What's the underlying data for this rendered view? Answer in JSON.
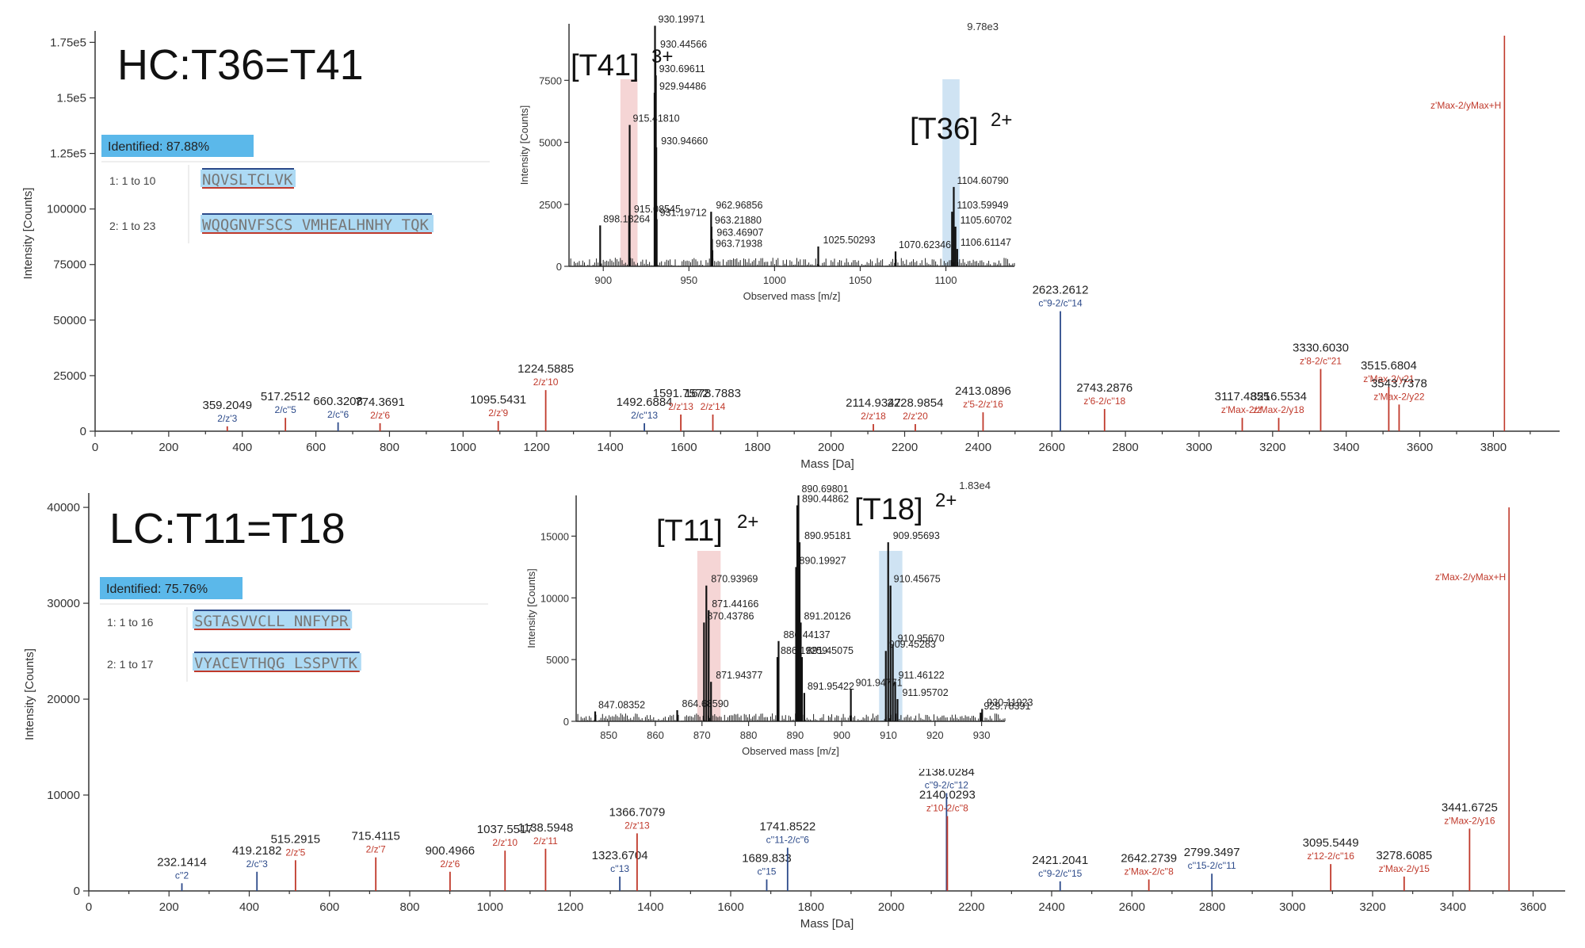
{
  "chart_data": [
    {
      "type": "bar",
      "panel": "top",
      "title": "HC:T36=T41",
      "xlabel": "Mass [Da]",
      "ylabel": "Intensity [Counts]",
      "xlim": [
        0,
        3980
      ],
      "ylim": [
        0,
        178000
      ],
      "xticks": [
        0,
        200,
        400,
        600,
        800,
        1000,
        1200,
        1400,
        1600,
        1800,
        2000,
        2200,
        2400,
        2600,
        2800,
        3000,
        3200,
        3400,
        3600,
        3800
      ],
      "yticks": [
        {
          "v": 0,
          "l": "0"
        },
        {
          "v": 25000,
          "l": "25000"
        },
        {
          "v": 50000,
          "l": "50000"
        },
        {
          "v": 75000,
          "l": "75000"
        },
        {
          "v": 100000,
          "l": "100000"
        },
        {
          "v": 125000,
          "l": "1.25e5"
        },
        {
          "v": 150000,
          "l": "1.5e5"
        },
        {
          "v": 175000,
          "l": "1.75e5"
        }
      ],
      "identified": "Identified: 87.88%",
      "sequences": [
        {
          "label": "1: 1 to 10",
          "seq": "NQVSLTCLVK",
          "cys": [
            6
          ]
        },
        {
          "label": "2: 1 to 23",
          "seq": "WQQGNVFSCS VMHEALHNHY TQK",
          "cys": [
            8
          ]
        }
      ],
      "peaks": [
        {
          "m": 359.2049,
          "i": 2200,
          "c": "#c0392b",
          "lab": "359.2049",
          "ion": "2/z'3",
          "ic": "#2c4a8a"
        },
        {
          "m": 517.2512,
          "i": 6000,
          "c": "#c0392b",
          "lab": "517.2512",
          "ion": "2/c''5",
          "ic": "#2c4a8a"
        },
        {
          "m": 660.3208,
          "i": 4000,
          "c": "#2c4a8a",
          "lab": "660.3208",
          "ion": "2/c''6",
          "ic": "#2c4a8a"
        },
        {
          "m": 774.3691,
          "i": 3600,
          "c": "#c0392b",
          "lab": "774.3691",
          "ion": "2/z'6",
          "ic": "#c0392b"
        },
        {
          "m": 1095.5431,
          "i": 4600,
          "c": "#c0392b",
          "lab": "1095.5431",
          "ion": "2/z'9",
          "ic": "#c0392b"
        },
        {
          "m": 1224.5885,
          "i": 18500,
          "c": "#c0392b",
          "lab": "1224.5885",
          "ion": "2/z'10",
          "ic": "#c0392b"
        },
        {
          "m": 1492.6884,
          "i": 3600,
          "c": "#2c4a8a",
          "lab": "1492.6884",
          "ion": "2/c''13",
          "ic": "#2c4a8a"
        },
        {
          "m": 1591.7572,
          "i": 7500,
          "c": "#c0392b",
          "lab": "1591.7572",
          "ion": "2/z'13",
          "ic": "#c0392b"
        },
        {
          "m": 1678.7883,
          "i": 7500,
          "c": "#c0392b",
          "lab": "1678.7883",
          "ion": "2/z'14",
          "ic": "#c0392b"
        },
        {
          "m": 2114.9347,
          "i": 3200,
          "c": "#c0392b",
          "lab": "2114.9347",
          "ion": "2/z'18",
          "ic": "#c0392b"
        },
        {
          "m": 2228.9854,
          "i": 3200,
          "c": "#c0392b",
          "lab": "2228.9854",
          "ion": "2/z'20",
          "ic": "#c0392b"
        },
        {
          "m": 2413.0896,
          "i": 8500,
          "c": "#c0392b",
          "lab": "2413.0896",
          "ion": "z'5-2/z'16",
          "ic": "#c0392b"
        },
        {
          "m": 2623.2612,
          "i": 54000,
          "c": "#2c4a8a",
          "lab": "2623.2612",
          "ion": "c''9-2/c''14",
          "ic": "#2c4a8a"
        },
        {
          "m": 2743.2876,
          "i": 10000,
          "c": "#c0392b",
          "lab": "2743.2876",
          "ion": "z'6-2/c''18",
          "ic": "#c0392b"
        },
        {
          "m": 3117.4855,
          "i": 6000,
          "c": "#c0392b",
          "lab": "3117.4855",
          "ion": "z'Max-2/z'",
          "ic": "#c0392b"
        },
        {
          "m": 3216.5534,
          "i": 6000,
          "c": "#c0392b",
          "lab": "3216.5534",
          "ion": "z'Max-2/y18",
          "ic": "#c0392b"
        },
        {
          "m": 3330.603,
          "i": 28000,
          "c": "#c0392b",
          "lab": "3330.6030",
          "ion": "z'8-2/c''21",
          "ic": "#c0392b"
        },
        {
          "m": 3515.6804,
          "i": 20000,
          "c": "#c0392b",
          "lab": "3515.6804",
          "ion": "z'Max-2/y21",
          "ic": "#c0392b"
        },
        {
          "m": 3543.7378,
          "i": 12000,
          "c": "#c0392b",
          "lab": "3543.7378",
          "ion": "z'Max-2/y22",
          "ic": "#c0392b"
        },
        {
          "m": 3830.0,
          "i": 178000,
          "c": "#c0392b",
          "lab": "",
          "ion": "z'Max-2/yMax+H",
          "ic": "#c0392b"
        }
      ],
      "inset": {
        "xlabel": "Observed mass [m/z]",
        "ylabel": "Intensity [Counts]",
        "xlim": [
          880,
          1140
        ],
        "ylim": [
          0,
          9780
        ],
        "maxlabel": "9.78e3",
        "xticks": [
          900,
          950,
          1000,
          1050,
          1100
        ],
        "yticks": [
          0,
          2500,
          5000,
          7500
        ],
        "bands": [
          {
            "from": 910,
            "to": 920,
            "color": "#f5d5d5"
          },
          {
            "from": 1098,
            "to": 1108,
            "color": "#cfe3f3"
          }
        ],
        "species": [
          {
            "label": "[T41]",
            "sup": "3+"
          },
          {
            "label": "[T36]",
            "sup": "2+"
          }
        ],
        "peaks": [
          {
            "m": 898.18264,
            "i": 1650,
            "lab": "898.18264"
          },
          {
            "m": 915.08545,
            "i": 2050,
            "lab": "915.08545"
          },
          {
            "m": 915.4181,
            "i": 5700,
            "lab": "915.41810"
          },
          {
            "m": 929.94486,
            "i": 7000,
            "lab": "929.94486"
          },
          {
            "m": 930.19971,
            "i": 9700,
            "lab": "930.19971"
          },
          {
            "m": 930.44566,
            "i": 8700,
            "lab": "930.44566"
          },
          {
            "m": 930.69611,
            "i": 7700,
            "lab": "930.69611"
          },
          {
            "m": 930.9466,
            "i": 4800,
            "lab": "930.94660"
          },
          {
            "m": 931.19712,
            "i": 1900,
            "lab": "931.19712"
          },
          {
            "m": 962.96856,
            "i": 2200,
            "lab": "962.96856"
          },
          {
            "m": 963.2188,
            "i": 1600,
            "lab": "963.21880"
          },
          {
            "m": 963.46907,
            "i": 1100,
            "lab": "963.46907"
          },
          {
            "m": 963.71938,
            "i": 650,
            "lab": "963.71938"
          },
          {
            "m": 1025.50293,
            "i": 800,
            "lab": "1025.50293"
          },
          {
            "m": 1070.62346,
            "i": 600,
            "lab": "1070.62346"
          },
          {
            "m": 1103.59949,
            "i": 2200,
            "lab": "1103.59949"
          },
          {
            "m": 1104.6079,
            "i": 3200,
            "lab": "1104.60790"
          },
          {
            "m": 1105.60702,
            "i": 1600,
            "lab": "1105.60702"
          },
          {
            "m": 1106.61147,
            "i": 700,
            "lab": "1106.61147"
          }
        ]
      }
    },
    {
      "type": "bar",
      "panel": "bottom",
      "title": "LC:T11=T18",
      "xlabel": "Mass [Da]",
      "ylabel": "Intensity [Counts]",
      "xlim": [
        0,
        3680
      ],
      "ylim": [
        0,
        41000
      ],
      "xticks": [
        0,
        200,
        400,
        600,
        800,
        1000,
        1200,
        1400,
        1600,
        1800,
        2000,
        2200,
        2400,
        2600,
        2800,
        3000,
        3200,
        3400,
        3600
      ],
      "yticks": [
        {
          "v": 0,
          "l": "0"
        },
        {
          "v": 10000,
          "l": "10000"
        },
        {
          "v": 20000,
          "l": "20000"
        },
        {
          "v": 30000,
          "l": "30000"
        },
        {
          "v": 40000,
          "l": "40000"
        }
      ],
      "identified": "Identified: 75.76%",
      "sequences": [
        {
          "label": "1: 1 to 16",
          "seq": "SGTASVVCLL NNFYPR",
          "cys": [
            7
          ]
        },
        {
          "label": "2: 1 to 17",
          "seq": "VYACEVTHQG LSSPVTK",
          "cys": [
            3
          ]
        }
      ],
      "peaks": [
        {
          "m": 232.1414,
          "i": 800,
          "c": "#2c4a8a",
          "lab": "232.1414",
          "ion": "c''2",
          "ic": "#2c4a8a"
        },
        {
          "m": 419.2182,
          "i": 2000,
          "c": "#2c4a8a",
          "lab": "419.2182",
          "ion": "2/c''3",
          "ic": "#2c4a8a"
        },
        {
          "m": 515.2915,
          "i": 3200,
          "c": "#c0392b",
          "lab": "515.2915",
          "ion": "2/z'5",
          "ic": "#c0392b"
        },
        {
          "m": 715.4115,
          "i": 3500,
          "c": "#c0392b",
          "lab": "715.4115",
          "ion": "2/z'7",
          "ic": "#c0392b"
        },
        {
          "m": 900.4966,
          "i": 2000,
          "c": "#c0392b",
          "lab": "900.4966",
          "ion": "2/z'6",
          "ic": "#c0392b"
        },
        {
          "m": 1037.5517,
          "i": 4200,
          "c": "#c0392b",
          "lab": "1037.5517",
          "ion": "2/z'10",
          "ic": "#c0392b"
        },
        {
          "m": 1138.5948,
          "i": 4400,
          "c": "#c0392b",
          "lab": "1138.5948",
          "ion": "2/z'11",
          "ic": "#c0392b"
        },
        {
          "m": 1323.6704,
          "i": 1500,
          "c": "#2c4a8a",
          "lab": "1323.6704",
          "ion": "c''13",
          "ic": "#2c4a8a"
        },
        {
          "m": 1366.7079,
          "i": 6000,
          "c": "#c0392b",
          "lab": "1366.7079",
          "ion": "2/z'13",
          "ic": "#c0392b"
        },
        {
          "m": 1689.833,
          "i": 1200,
          "c": "#2c4a8a",
          "lab": "1689.833",
          "ion": "c''15",
          "ic": "#2c4a8a"
        },
        {
          "m": 1741.8522,
          "i": 4500,
          "c": "#2c4a8a",
          "lab": "1741.8522",
          "ion": "c''11-2/c''6",
          "ic": "#2c4a8a"
        },
        {
          "m": 2138.0284,
          "i": 10200,
          "c": "#2c4a8a",
          "lab": "2138.0284",
          "ion": "c''9-2/c''12",
          "ic": "#2c4a8a"
        },
        {
          "m": 2140.0293,
          "i": 7800,
          "c": "#c0392b",
          "lab": "2140.0293",
          "ion": "z'10-2/c''8",
          "ic": "#c0392b"
        },
        {
          "m": 2421.2041,
          "i": 1000,
          "c": "#2c4a8a",
          "lab": "2421.2041",
          "ion": "c''9-2/c''15",
          "ic": "#2c4a8a"
        },
        {
          "m": 2642.2739,
          "i": 1200,
          "c": "#c0392b",
          "lab": "2642.2739",
          "ion": "z'Max-2/c''8",
          "ic": "#c0392b"
        },
        {
          "m": 2799.3497,
          "i": 1800,
          "c": "#2c4a8a",
          "lab": "2799.3497",
          "ion": "c''15-2/c''11",
          "ic": "#2c4a8a"
        },
        {
          "m": 3095.5449,
          "i": 2800,
          "c": "#c0392b",
          "lab": "3095.5449",
          "ion": "z'12-2/c''16",
          "ic": "#c0392b"
        },
        {
          "m": 3278.6085,
          "i": 1500,
          "c": "#c0392b",
          "lab": "3278.6085",
          "ion": "z'Max-2/y15",
          "ic": "#c0392b"
        },
        {
          "m": 3441.6725,
          "i": 6500,
          "c": "#c0392b",
          "lab": "3441.6725",
          "ion": "z'Max-2/y16",
          "ic": "#c0392b"
        },
        {
          "m": 3540.0,
          "i": 40000,
          "c": "#c0392b",
          "lab": "",
          "ion": "z'Max-2/yMax+H",
          "ic": "#c0392b"
        }
      ],
      "inset": {
        "xlabel": "Observed mass [m/z]",
        "ylabel": "Intensity [Counts]",
        "xlim": [
          843,
          935
        ],
        "ylim": [
          0,
          18300
        ],
        "maxlabel": "1.83e4",
        "xticks": [
          850,
          860,
          870,
          880,
          890,
          900,
          910,
          920,
          930
        ],
        "yticks": [
          0,
          5000,
          10000,
          15000
        ],
        "bands": [
          {
            "from": 869,
            "to": 874,
            "color": "#f5d5d5"
          },
          {
            "from": 908,
            "to": 913,
            "color": "#cfe3f3"
          }
        ],
        "species": [
          {
            "label": "[T11]",
            "sup": "2+"
          },
          {
            "label": "[T18]",
            "sup": "2+"
          }
        ],
        "peaks": [
          {
            "m": 847.08352,
            "i": 800,
            "lab": "847.08352"
          },
          {
            "m": 864.6859,
            "i": 900,
            "lab": "864.68590"
          },
          {
            "m": 870.43786,
            "i": 8000,
            "lab": "870.43786"
          },
          {
            "m": 870.93969,
            "i": 11000,
            "lab": "870.93969"
          },
          {
            "m": 871.44166,
            "i": 9000,
            "lab": "871.44166"
          },
          {
            "m": 871.94377,
            "i": 3200,
            "lab": "871.94377"
          },
          {
            "m": 886.19259,
            "i": 5200,
            "lab": "886.19259"
          },
          {
            "m": 886.44137,
            "i": 6500,
            "lab": "886.44137"
          },
          {
            "m": 890.19927,
            "i": 12500,
            "lab": "890.19927"
          },
          {
            "m": 890.44862,
            "i": 17500,
            "lab": "890.44862"
          },
          {
            "m": 890.69801,
            "i": 18300,
            "lab": "890.69801"
          },
          {
            "m": 890.95181,
            "i": 14500,
            "lab": "890.95181"
          },
          {
            "m": 891.20126,
            "i": 8000,
            "lab": "891.20126"
          },
          {
            "m": 891.45075,
            "i": 5200,
            "lab": "891.45075"
          },
          {
            "m": 891.95422,
            "i": 2300,
            "lab": "891.95422"
          },
          {
            "m": 901.94771,
            "i": 2600,
            "lab": "901.94771"
          },
          {
            "m": 909.45283,
            "i": 5700,
            "lab": "909.45283"
          },
          {
            "m": 909.95693,
            "i": 14500,
            "lab": "909.95693"
          },
          {
            "m": 910.45675,
            "i": 11000,
            "lab": "910.45675"
          },
          {
            "m": 910.9567,
            "i": 6200,
            "lab": "910.95670"
          },
          {
            "m": 911.46122,
            "i": 3200,
            "lab": "911.46122"
          },
          {
            "m": 911.95702,
            "i": 1800,
            "lab": "911.95702"
          },
          {
            "m": 929.78391,
            "i": 700,
            "lab": "929.78391"
          },
          {
            "m": 930.11923,
            "i": 1000,
            "lab": "930.11923"
          }
        ]
      }
    }
  ]
}
